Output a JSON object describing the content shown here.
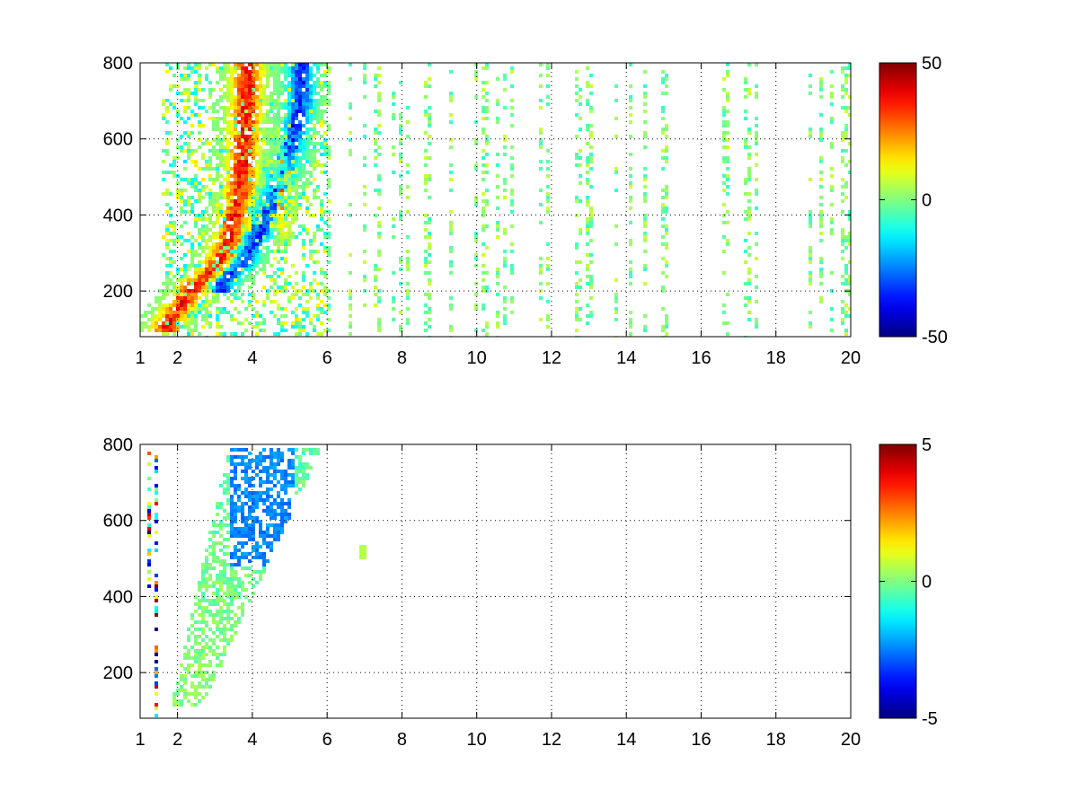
{
  "chart_data": [
    {
      "type": "heatmap",
      "title": "",
      "xlabel": "",
      "ylabel": "",
      "xlim": [
        1,
        20
      ],
      "ylim": [
        80,
        800
      ],
      "grid": true,
      "x_ticks": [
        1,
        2,
        4,
        6,
        8,
        10,
        12,
        14,
        16,
        18,
        20
      ],
      "y_ticks": [
        200,
        400,
        600,
        800
      ],
      "x_tick_labels": [
        "1",
        "2",
        "4",
        "6",
        "8",
        "10",
        "12",
        "14",
        "16",
        "18",
        "20"
      ],
      "y_tick_labels": [
        "200",
        "400",
        "600",
        "800"
      ],
      "colorbar": {
        "min": -50,
        "max": 50,
        "ticks": [
          -50,
          0,
          50
        ],
        "tick_labels": [
          "-50",
          "0",
          "50"
        ],
        "colormap": "jet",
        "placement": "right"
      },
      "features": [
        {
          "kind": "ridge",
          "sign": "positive",
          "x": [
            1.7,
            2.5,
            3.0,
            3.4,
            3.7,
            3.85
          ],
          "y": [
            110,
            220,
            260,
            330,
            480,
            700
          ],
          "amplitude": 40,
          "width": 0.4
        },
        {
          "kind": "ridge",
          "sign": "negative",
          "x": [
            3.2,
            3.7,
            4.2,
            4.6,
            5.0,
            5.3
          ],
          "y": [
            220,
            270,
            360,
            450,
            570,
            700
          ],
          "amplitude": -38,
          "width": 0.35
        },
        {
          "kind": "blob",
          "sign": "positive",
          "x": 4.8,
          "y": 480,
          "amplitude": 30,
          "width": 0.3
        },
        {
          "kind": "background",
          "x_range": [
            6,
            20
          ],
          "value_range": [
            -8,
            8
          ],
          "coverage": "sparse"
        }
      ]
    },
    {
      "type": "heatmap",
      "title": "",
      "xlabel": "",
      "ylabel": "",
      "xlim": [
        1,
        20
      ],
      "ylim": [
        80,
        800
      ],
      "grid": true,
      "x_ticks": [
        1,
        2,
        4,
        6,
        8,
        10,
        12,
        14,
        16,
        18,
        20
      ],
      "y_ticks": [
        200,
        400,
        600,
        800
      ],
      "x_tick_labels": [
        "1",
        "2",
        "4",
        "6",
        "8",
        "10",
        "12",
        "14",
        "16",
        "18",
        "20"
      ],
      "y_tick_labels": [
        "200",
        "400",
        "600",
        "800"
      ],
      "colorbar": {
        "min": -5,
        "max": 5,
        "ticks": [
          -5,
          0,
          5
        ],
        "tick_labels": [
          "-5",
          "0",
          "5"
        ],
        "colormap": "jet",
        "placement": "right"
      },
      "features": [
        {
          "kind": "region",
          "x_range": [
            1.8,
            5.9
          ],
          "y_range": [
            110,
            790
          ],
          "value_range": [
            -2.5,
            1
          ],
          "note": "cyan at top (x 3.5–5), green below"
        },
        {
          "kind": "streak",
          "x": 1.25,
          "y_range": [
            400,
            780
          ],
          "value_range": [
            -5,
            5
          ]
        },
        {
          "kind": "streak",
          "x": 1.45,
          "y_range": [
            80,
            780
          ],
          "value_range": [
            -5,
            5
          ]
        },
        {
          "kind": "patch",
          "x": 7.0,
          "y": 520,
          "value": 0.5
        }
      ]
    }
  ]
}
